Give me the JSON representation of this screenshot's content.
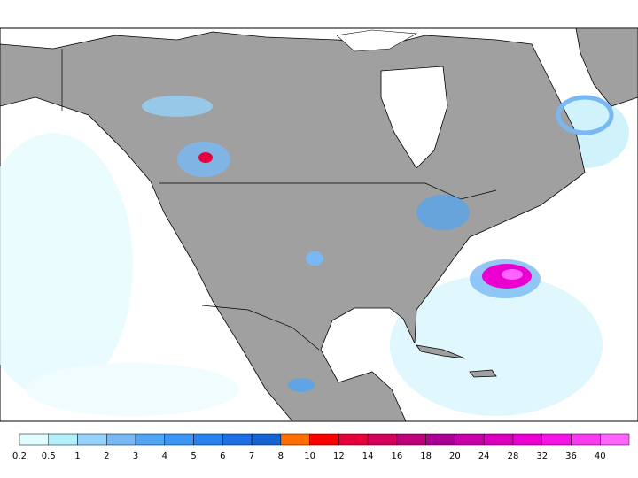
{
  "legend": {
    "labels": [
      "0.2",
      "0.5",
      "1",
      "2",
      "3",
      "4",
      "5",
      "6",
      "7",
      "8",
      "10",
      "12",
      "14",
      "16",
      "18",
      "20",
      "24",
      "28",
      "32",
      "36",
      "40"
    ],
    "colors": [
      "#e1fcff",
      "#b4f0fa",
      "#96d2fa",
      "#78b9f5",
      "#50a5f5",
      "#3c96f5",
      "#2882f0",
      "#1e6ee6",
      "#1464d2",
      "#ff6e00",
      "#ff0000",
      "#e6003c",
      "#d2005a",
      "#be0078",
      "#aa0096",
      "#c800aa",
      "#dc00be",
      "#eb00d2",
      "#f514e6",
      "#fa3cf0",
      "#ff64ff"
    ]
  }
}
